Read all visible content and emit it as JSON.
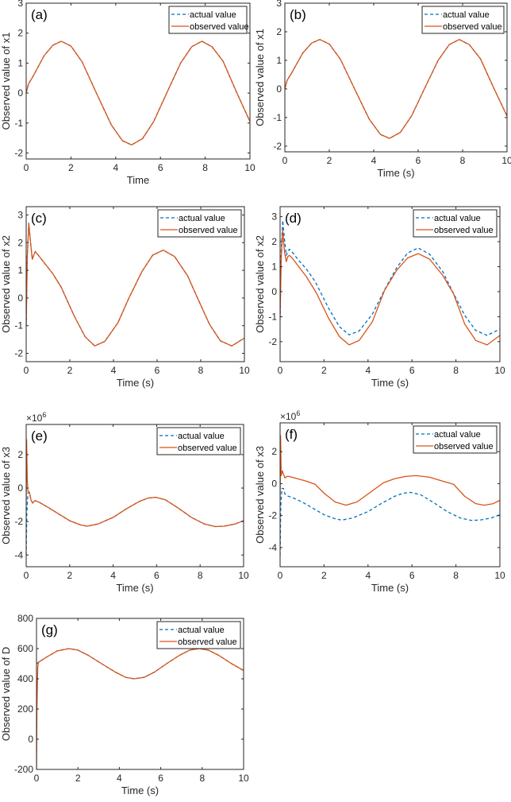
{
  "chart_data": [
    {
      "type": "line",
      "panel_label": "(a)",
      "xlabel": "Time",
      "ylabel": "Observed value of x1",
      "xlim": [
        0,
        10
      ],
      "ylim": [
        -2.2,
        3
      ],
      "xticks": [
        0,
        2,
        4,
        6,
        8,
        10
      ],
      "yticks": [
        -2,
        -1,
        0,
        1,
        2,
        3
      ],
      "exponent_label": "",
      "legend_position": "top-right",
      "series": [
        {
          "name": "actual value",
          "style": "dashed",
          "color": "#0072BD",
          "x": [
            0,
            0.1,
            0.3,
            0.8,
            1.2,
            1.57,
            2.0,
            2.5,
            3.14,
            3.8,
            4.3,
            4.71,
            5.2,
            5.7,
            6.28,
            6.9,
            7.4,
            7.85,
            8.3,
            8.8,
            9.42,
            10
          ],
          "y": [
            0,
            0.3,
            0.55,
            1.25,
            1.6,
            1.73,
            1.57,
            1.04,
            0,
            -1.06,
            -1.59,
            -1.73,
            -1.52,
            -0.95,
            0,
            1.0,
            1.55,
            1.73,
            1.55,
            1.06,
            0,
            -0.95
          ]
        },
        {
          "name": "observed value",
          "style": "solid",
          "color": "#D95319",
          "x": [
            0,
            0.1,
            0.3,
            0.8,
            1.2,
            1.57,
            2.0,
            2.5,
            3.14,
            3.8,
            4.3,
            4.71,
            5.2,
            5.7,
            6.28,
            6.9,
            7.4,
            7.85,
            8.3,
            8.8,
            9.42,
            10
          ],
          "y": [
            0,
            0.3,
            0.55,
            1.25,
            1.6,
            1.73,
            1.57,
            1.04,
            0,
            -1.06,
            -1.59,
            -1.73,
            -1.52,
            -0.95,
            0,
            1.0,
            1.55,
            1.73,
            1.55,
            1.06,
            0,
            -0.95
          ]
        }
      ]
    },
    {
      "type": "line",
      "panel_label": "(b)",
      "xlabel": "Time (s)",
      "ylabel": "Observed value of x1",
      "xlim": [
        0,
        10
      ],
      "ylim": [
        -2.2,
        3
      ],
      "xticks": [
        0,
        2,
        4,
        6,
        8,
        10
      ],
      "yticks": [
        -2,
        -1,
        0,
        1,
        2,
        3
      ],
      "exponent_label": "",
      "legend_position": "top-right",
      "series": [
        {
          "name": "actual value",
          "style": "dashed",
          "color": "#0072BD",
          "x": [
            0,
            0.1,
            0.3,
            0.8,
            1.2,
            1.57,
            2.0,
            2.5,
            3.14,
            3.8,
            4.3,
            4.71,
            5.2,
            5.7,
            6.28,
            6.9,
            7.4,
            7.85,
            8.3,
            8.8,
            9.42,
            10
          ],
          "y": [
            0,
            0.3,
            0.55,
            1.25,
            1.6,
            1.73,
            1.57,
            1.04,
            0,
            -1.06,
            -1.59,
            -1.73,
            -1.52,
            -0.95,
            0,
            1.0,
            1.55,
            1.73,
            1.55,
            1.06,
            0,
            -0.95
          ]
        },
        {
          "name": "observed value",
          "style": "solid",
          "color": "#D95319",
          "x": [
            0,
            0.1,
            0.3,
            0.8,
            1.2,
            1.57,
            2.0,
            2.5,
            3.14,
            3.8,
            4.3,
            4.71,
            5.2,
            5.7,
            6.28,
            6.9,
            7.4,
            7.85,
            8.3,
            8.8,
            9.42,
            10
          ],
          "y": [
            0,
            0.3,
            0.55,
            1.25,
            1.6,
            1.73,
            1.57,
            1.04,
            0,
            -1.06,
            -1.59,
            -1.73,
            -1.52,
            -0.95,
            0,
            1.0,
            1.55,
            1.73,
            1.55,
            1.06,
            0,
            -0.95
          ]
        }
      ]
    },
    {
      "type": "line",
      "panel_label": "(c)",
      "xlabel": "Time (s)",
      "ylabel": "Observed value of x2",
      "xlim": [
        0,
        10
      ],
      "ylim": [
        -2.3,
        3.3
      ],
      "xticks": [
        0,
        2,
        4,
        6,
        8,
        10
      ],
      "yticks": [
        -2,
        -1,
        0,
        1,
        2,
        3
      ],
      "exponent_label": "",
      "legend_position": "top-right",
      "series": [
        {
          "name": "actual value",
          "style": "dashed",
          "color": "#0072BD",
          "x": [
            0,
            0.05,
            0.12,
            0.2,
            0.28,
            0.35,
            0.42,
            0.55,
            0.8,
            1.2,
            1.6,
            2.2,
            2.7,
            3.14,
            3.6,
            4.2,
            4.71,
            5.3,
            5.8,
            6.28,
            6.8,
            7.4,
            7.85,
            8.4,
            8.9,
            9.42,
            10
          ],
          "y": [
            -1.0,
            1.5,
            2.7,
            2.0,
            1.4,
            1.55,
            1.68,
            1.55,
            1.3,
            0.9,
            0.4,
            -0.65,
            -1.4,
            -1.73,
            -1.57,
            -0.9,
            0,
            0.95,
            1.55,
            1.73,
            1.5,
            0.8,
            0,
            -0.95,
            -1.55,
            -1.73,
            -1.45
          ]
        },
        {
          "name": "observed value",
          "style": "solid",
          "color": "#D95319",
          "x": [
            0,
            0.05,
            0.12,
            0.2,
            0.28,
            0.35,
            0.42,
            0.55,
            0.8,
            1.2,
            1.6,
            2.2,
            2.7,
            3.14,
            3.6,
            4.2,
            4.71,
            5.3,
            5.8,
            6.28,
            6.8,
            7.4,
            7.85,
            8.4,
            8.9,
            9.42,
            10
          ],
          "y": [
            -1.0,
            1.5,
            2.7,
            2.0,
            1.4,
            1.55,
            1.68,
            1.55,
            1.3,
            0.9,
            0.4,
            -0.65,
            -1.4,
            -1.73,
            -1.57,
            -0.9,
            0,
            0.95,
            1.55,
            1.73,
            1.5,
            0.8,
            0,
            -0.95,
            -1.55,
            -1.73,
            -1.45
          ]
        }
      ]
    },
    {
      "type": "line",
      "panel_label": "(d)",
      "xlabel": "Time (s)",
      "ylabel": "Observed value of x2",
      "xlim": [
        0,
        10
      ],
      "ylim": [
        -2.8,
        3.4
      ],
      "xticks": [
        0,
        2,
        4,
        6,
        8,
        10
      ],
      "yticks": [
        -2,
        -1,
        0,
        1,
        2,
        3
      ],
      "exponent_label": "",
      "legend_position": "top-right",
      "series": [
        {
          "name": "actual value",
          "style": "dashed",
          "color": "#0072BD",
          "x": [
            0,
            0.05,
            0.12,
            0.2,
            0.28,
            0.35,
            0.42,
            0.55,
            0.8,
            1.2,
            1.6,
            2.2,
            2.7,
            3.14,
            3.6,
            4.2,
            4.71,
            5.3,
            5.8,
            6.28,
            6.8,
            7.4,
            7.85,
            8.4,
            8.9,
            9.42,
            10
          ],
          "y": [
            -1.1,
            1.6,
            2.85,
            2.1,
            1.45,
            1.6,
            1.7,
            1.58,
            1.3,
            0.9,
            0.4,
            -0.65,
            -1.4,
            -1.73,
            -1.57,
            -0.9,
            0,
            0.95,
            1.55,
            1.75,
            1.5,
            0.8,
            0,
            -0.95,
            -1.55,
            -1.75,
            -1.5
          ]
        },
        {
          "name": "observed value",
          "style": "solid",
          "color": "#D95319",
          "x": [
            0,
            0.05,
            0.12,
            0.2,
            0.28,
            0.35,
            0.42,
            0.55,
            0.8,
            1.2,
            1.65,
            2.2,
            2.7,
            3.14,
            3.6,
            4.2,
            4.75,
            5.3,
            5.8,
            6.28,
            6.8,
            7.4,
            7.9,
            8.4,
            8.9,
            9.42,
            10
          ],
          "y": [
            -1.0,
            1.3,
            2.45,
            1.6,
            1.2,
            1.4,
            1.45,
            1.35,
            1.05,
            0.6,
            -0.05,
            -1.05,
            -1.8,
            -2.13,
            -1.95,
            -1.2,
            0.05,
            0.85,
            1.35,
            1.52,
            1.3,
            0.65,
            -0.1,
            -1.3,
            -1.95,
            -2.13,
            -1.75
          ]
        }
      ]
    },
    {
      "type": "line",
      "panel_label": "(e)",
      "xlabel": "Time (s)",
      "ylabel": "Observed value of x3",
      "xlim": [
        0,
        10
      ],
      "ylim": [
        -4.7,
        3.8
      ],
      "xticks": [
        0,
        2,
        4,
        6,
        8,
        10
      ],
      "yticks": [
        -4,
        -2,
        0,
        2
      ],
      "exponent_label": "×10",
      "exponent_power": "6",
      "legend_position": "top-right",
      "series": [
        {
          "name": "actual value",
          "style": "dashed",
          "color": "#0072BD",
          "x": [
            0,
            0.03,
            0.08,
            0.15,
            0.22,
            0.3,
            0.4,
            0.6,
            1.0,
            1.5,
            2.0,
            2.5,
            2.8,
            3.3,
            4.0,
            4.6,
            5.2,
            5.6,
            5.95,
            6.4,
            7.0,
            7.6,
            8.2,
            8.7,
            9.1,
            9.6,
            10
          ],
          "y": [
            -4.0,
            -1.5,
            -0.3,
            -0.25,
            -0.7,
            -0.9,
            -0.75,
            -0.85,
            -1.15,
            -1.55,
            -1.95,
            -2.2,
            -2.28,
            -2.15,
            -1.75,
            -1.25,
            -0.8,
            -0.6,
            -0.55,
            -0.7,
            -1.2,
            -1.75,
            -2.15,
            -2.3,
            -2.28,
            -2.15,
            -1.95
          ]
        },
        {
          "name": "observed value",
          "style": "solid",
          "color": "#D95319",
          "x": [
            0,
            0.02,
            0.05,
            0.08,
            0.15,
            0.22,
            0.3,
            0.4,
            0.6,
            1.0,
            1.5,
            2.0,
            2.5,
            2.8,
            3.3,
            4.0,
            4.6,
            5.2,
            5.6,
            5.95,
            6.4,
            7.0,
            7.6,
            8.2,
            8.7,
            9.1,
            9.6,
            10
          ],
          "y": [
            -1.0,
            2.9,
            0.5,
            -0.2,
            -0.25,
            -0.7,
            -0.9,
            -0.75,
            -0.85,
            -1.15,
            -1.55,
            -1.95,
            -2.2,
            -2.28,
            -2.15,
            -1.75,
            -1.25,
            -0.8,
            -0.6,
            -0.55,
            -0.7,
            -1.2,
            -1.75,
            -2.15,
            -2.3,
            -2.28,
            -2.15,
            -1.95
          ]
        }
      ]
    },
    {
      "type": "line",
      "panel_label": "(f)",
      "xlabel": "Time (s)",
      "ylabel": "Observed value of x3",
      "xlim": [
        0,
        10
      ],
      "ylim": [
        -5.2,
        3.8
      ],
      "xticks": [
        0,
        2,
        4,
        6,
        8,
        10
      ],
      "yticks": [
        -4,
        -2,
        0,
        2
      ],
      "exponent_label": "×10",
      "exponent_power": "6",
      "legend_position": "top-right",
      "series": [
        {
          "name": "actual value",
          "style": "dashed",
          "color": "#0072BD",
          "x": [
            0,
            0.03,
            0.08,
            0.15,
            0.22,
            0.3,
            0.6,
            1.0,
            1.5,
            2.0,
            2.5,
            2.8,
            3.3,
            4.0,
            4.6,
            5.2,
            5.6,
            5.95,
            6.4,
            7.0,
            7.6,
            8.2,
            8.7,
            9.1,
            9.6,
            10
          ],
          "y": [
            -4.5,
            -1.5,
            -0.3,
            -0.3,
            -0.65,
            -0.75,
            -0.9,
            -1.15,
            -1.55,
            -1.95,
            -2.2,
            -2.28,
            -2.15,
            -1.75,
            -1.25,
            -0.8,
            -0.6,
            -0.55,
            -0.7,
            -1.2,
            -1.75,
            -2.15,
            -2.3,
            -2.28,
            -2.15,
            -1.95
          ]
        },
        {
          "name": "observed value",
          "style": "solid",
          "color": "#D95319",
          "x": [
            0,
            0.02,
            0.05,
            0.1,
            0.15,
            0.22,
            0.3,
            0.4,
            0.8,
            1.2,
            1.6,
            2.0,
            2.5,
            3.0,
            3.5,
            4.0,
            4.7,
            5.2,
            5.7,
            6.2,
            6.8,
            7.4,
            7.9,
            8.4,
            8.9,
            9.3,
            9.7,
            10
          ],
          "y": [
            -1.0,
            3.0,
            0.5,
            0.8,
            0.6,
            0.35,
            0.45,
            0.45,
            0.3,
            0.15,
            -0.05,
            -0.6,
            -1.15,
            -1.35,
            -1.15,
            -0.65,
            0.05,
            0.3,
            0.45,
            0.5,
            0.4,
            0.15,
            -0.05,
            -0.8,
            -1.25,
            -1.35,
            -1.25,
            -1.05
          ]
        }
      ]
    },
    {
      "type": "line",
      "panel_label": "(g)",
      "xlabel": "Time (s)",
      "ylabel": "Observed value of D",
      "xlim": [
        0,
        10
      ],
      "ylim": [
        -200,
        800
      ],
      "xticks": [
        0,
        2,
        4,
        6,
        8,
        10
      ],
      "yticks": [
        -200,
        0,
        200,
        400,
        600,
        800
      ],
      "exponent_label": "",
      "legend_position": "top-right",
      "series": [
        {
          "name": "actual value",
          "style": "dashed",
          "color": "#0072BD",
          "x": [
            0,
            0.1,
            0.5,
            1.0,
            1.57,
            2.0,
            2.5,
            3.14,
            3.8,
            4.3,
            4.71,
            5.2,
            5.7,
            6.28,
            6.9,
            7.4,
            7.85,
            8.3,
            8.8,
            9.42,
            10
          ],
          "y": [
            500,
            510,
            545,
            585,
            600,
            590,
            555,
            500,
            445,
            410,
            400,
            410,
            445,
            500,
            555,
            590,
            600,
            590,
            555,
            500,
            455
          ]
        },
        {
          "name": "observed value",
          "style": "solid",
          "color": "#D95319",
          "x": [
            0,
            0.02,
            0.06,
            0.1,
            0.5,
            1.0,
            1.57,
            2.0,
            2.5,
            3.14,
            3.8,
            4.3,
            4.71,
            5.2,
            5.7,
            6.28,
            6.9,
            7.4,
            7.85,
            8.3,
            8.8,
            9.42,
            10
          ],
          "y": [
            -200,
            200,
            480,
            510,
            545,
            585,
            600,
            590,
            555,
            500,
            445,
            410,
            400,
            410,
            445,
            500,
            555,
            590,
            600,
            590,
            555,
            500,
            455
          ]
        }
      ]
    }
  ]
}
